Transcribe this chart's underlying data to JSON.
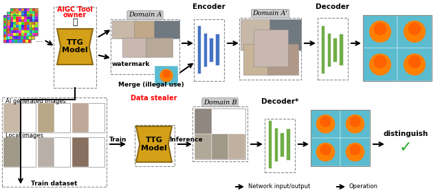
{
  "fig_width": 6.4,
  "fig_height": 2.84,
  "dpi": 100,
  "aigc_color": "#ff0000",
  "data_stealer_color": "#ff0000",
  "gold_color": "#D4A017",
  "gold_dark": "#8B6914",
  "blue_bar_color": "#4472C4",
  "green_bar_color": "#70AD47",
  "domain_a_label": "Domain A",
  "domain_a_prime_label": "Domain A'",
  "domain_b_label": "Domain B",
  "encoder_label": "Encoder",
  "decoder_label": "Decoder",
  "decoder_star_label": "Decoder*",
  "watermark_label": "watermark",
  "merge_label": "Merge (illegal use)",
  "train_label": "Train",
  "inference_label": "Inference",
  "distinguish_label": "distinguish",
  "ai_gen_label": "AI generated images",
  "local_label": "Local images",
  "train_dataset_label": "Train dataset",
  "network_label": "Network input/output",
  "operation_label": "Operation",
  "face_colors_top": [
    "#c8a898",
    "#c4a080",
    "#7a8a9a",
    "#c0b0a0",
    "#b0a898",
    "#a89880"
  ],
  "face_colors_bot": [
    "#c0a898",
    "#b89878",
    "#889aaa",
    "#d0c0b0",
    "#b0b0a0",
    "#887060"
  ],
  "orange_bg": "#5bbcd0",
  "domain_bg": "#c8d8e8"
}
